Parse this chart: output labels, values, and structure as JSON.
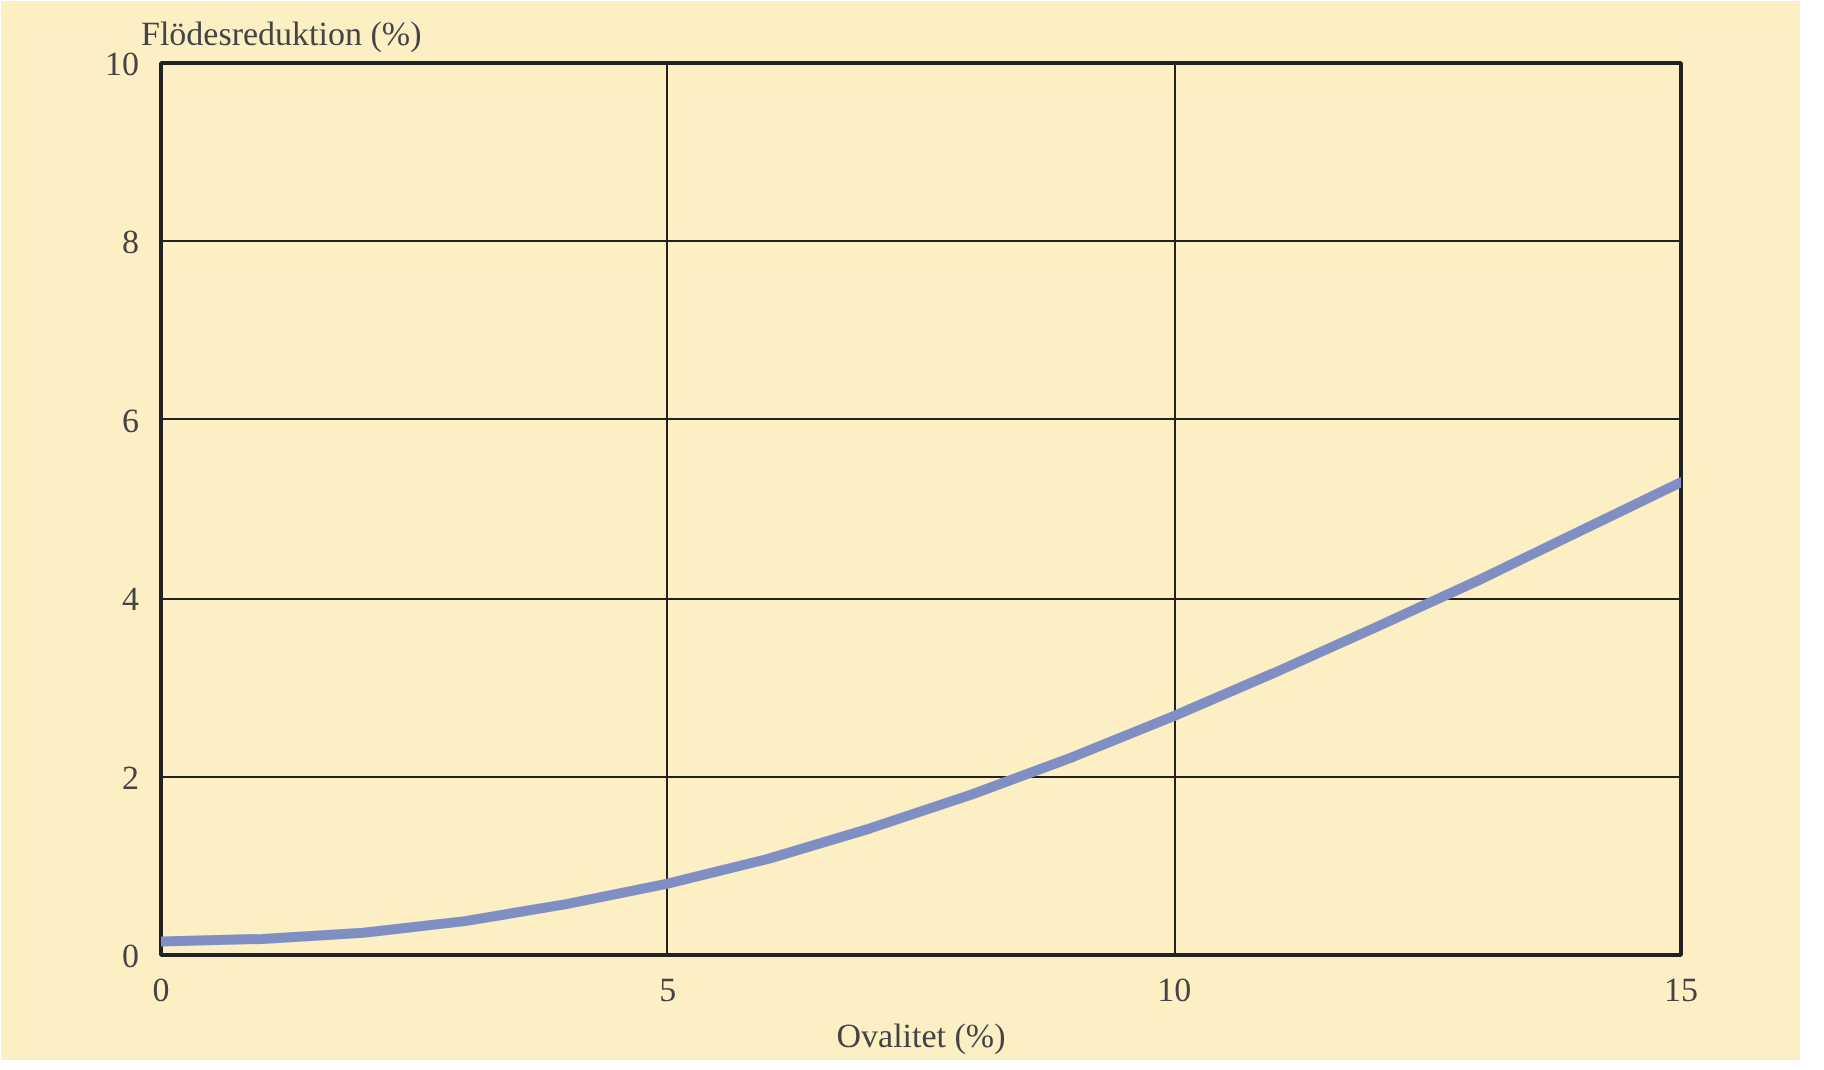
{
  "chart_data": {
    "type": "line",
    "xlabel": "Ovalitet (%)",
    "ylabel": "Flödesreduktion (%)",
    "x": [
      0,
      1,
      2,
      3,
      4,
      5,
      6,
      7,
      8,
      9,
      10,
      11,
      12,
      13,
      14,
      15
    ],
    "series": [
      {
        "color": "#7f8fc4",
        "values": [
          0.15,
          0.18,
          0.25,
          0.38,
          0.57,
          0.8,
          1.08,
          1.42,
          1.8,
          2.22,
          2.68,
          3.17,
          3.68,
          4.2,
          4.75,
          5.3
        ]
      }
    ],
    "xlim": [
      0,
      15
    ],
    "ylim": [
      0,
      10
    ],
    "xticks": [
      0,
      5,
      10,
      15
    ],
    "yticks": [
      0,
      2,
      4,
      6,
      8,
      10
    ],
    "grid": true
  }
}
